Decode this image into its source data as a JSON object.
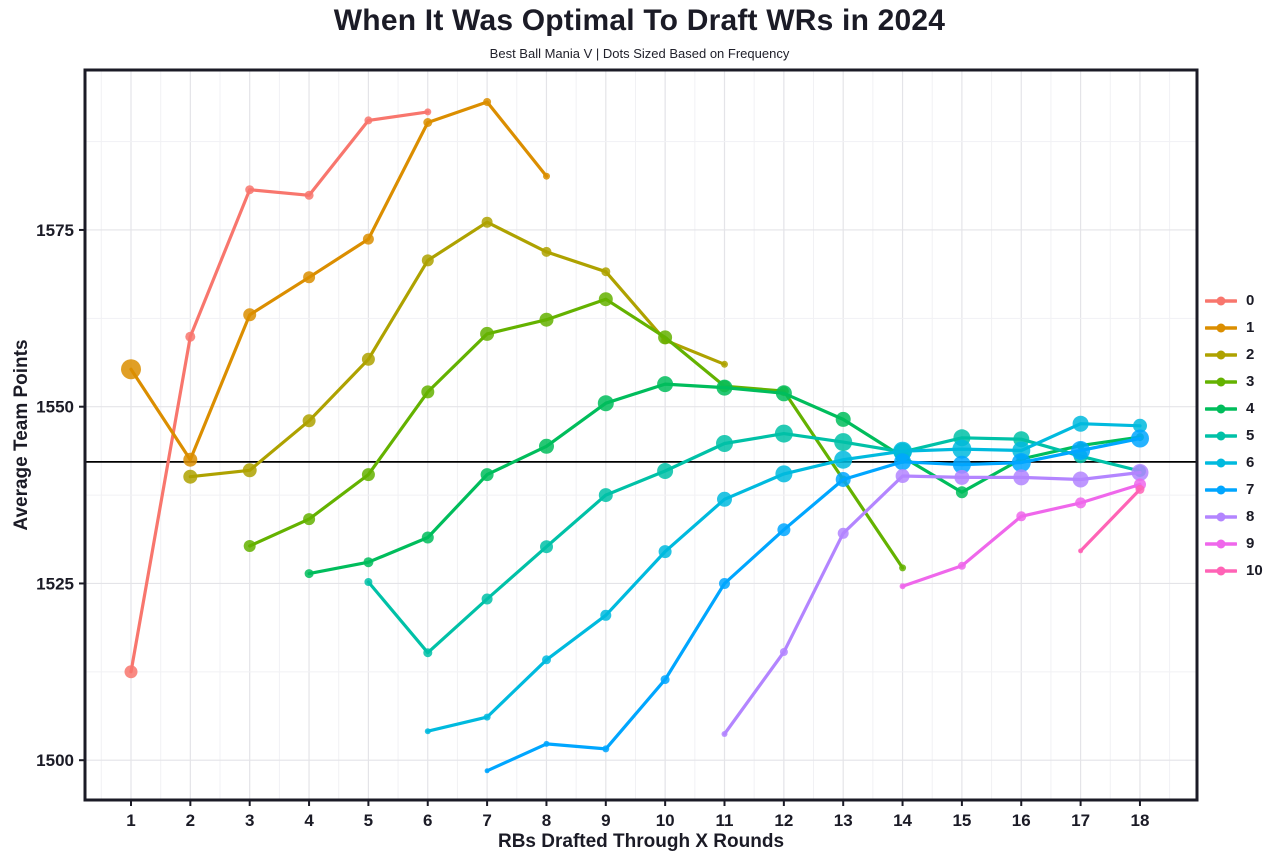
{
  "header": {
    "title": "When It Was Optimal To Draft WRs in 2024",
    "subtitle": "Best Ball Mania V | Dots Sized Based on Frequency"
  },
  "axes": {
    "x_label": "RBs Drafted Through X Rounds",
    "y_label": "Average Team Points",
    "x_ticks": [
      1,
      2,
      3,
      4,
      5,
      6,
      7,
      8,
      9,
      10,
      11,
      12,
      13,
      14,
      15,
      16,
      17,
      18
    ],
    "y_ticks": [
      1500,
      1525,
      1550,
      1575
    ]
  },
  "chart_data": {
    "type": "line",
    "title": "When It Was Optimal To Draft WRs in 2024",
    "subtitle": "Best Ball Mania V | Dots Sized Based on Frequency",
    "xlabel": "RBs Drafted Through X Rounds",
    "ylabel": "Average Team Points",
    "xlim": [
      0.22,
      18.96
    ],
    "ylim": [
      1494.4,
      1597.6
    ],
    "x_ticks": [
      1,
      2,
      3,
      4,
      5,
      6,
      7,
      8,
      9,
      10,
      11,
      12,
      13,
      14,
      15,
      16,
      17,
      18
    ],
    "y_ticks": [
      1500,
      1525,
      1550,
      1575
    ],
    "y_minor_ticks": [
      1512.5,
      1537.5,
      1562.5,
      1587.5
    ],
    "grid": true,
    "legend_position": "right",
    "legend_note": "dot size encodes frequency",
    "reference_line": {
      "value": 1542.2,
      "color": "#000000"
    },
    "series": [
      {
        "name": "0",
        "color": "#F8766D",
        "points": [
          [
            1,
            1512.5,
            6.5
          ],
          [
            2,
            1559.9,
            5
          ],
          [
            3,
            1580.7,
            4.5
          ],
          [
            4,
            1579.9,
            4.5
          ],
          [
            5,
            1590.5,
            4
          ],
          [
            6,
            1591.7,
            3.5
          ]
        ]
      },
      {
        "name": "1",
        "color": "#DB8E00",
        "points": [
          [
            1,
            1555.3,
            10
          ],
          [
            2,
            1542.5,
            7
          ],
          [
            3,
            1563.0,
            6.5
          ],
          [
            4,
            1568.3,
            6
          ],
          [
            5,
            1573.7,
            5.5
          ],
          [
            6,
            1590.2,
            4.5
          ],
          [
            7,
            1593.1,
            4
          ],
          [
            8,
            1582.6,
            3.5
          ]
        ]
      },
      {
        "name": "2",
        "color": "#AEA200",
        "points": [
          [
            2,
            1540.1,
            7
          ],
          [
            3,
            1541.0,
            7
          ],
          [
            4,
            1548.0,
            6.5
          ],
          [
            5,
            1556.7,
            6.5
          ],
          [
            6,
            1570.7,
            6
          ],
          [
            7,
            1576.1,
            5.5
          ],
          [
            8,
            1571.9,
            5
          ],
          [
            9,
            1569.1,
            4.5
          ],
          [
            10,
            1559.4,
            4
          ],
          [
            11,
            1556.0,
            3.5
          ]
        ]
      },
      {
        "name": "3",
        "color": "#64B200",
        "points": [
          [
            3,
            1530.3,
            6
          ],
          [
            4,
            1534.1,
            6
          ],
          [
            5,
            1540.4,
            6.5
          ],
          [
            6,
            1552.1,
            6.5
          ],
          [
            7,
            1560.3,
            7
          ],
          [
            8,
            1562.3,
            7
          ],
          [
            9,
            1565.2,
            7
          ],
          [
            10,
            1559.8,
            7
          ],
          [
            11,
            1552.9,
            6
          ],
          [
            12,
            1552.2,
            5
          ],
          [
            13,
            1539.7,
            4
          ],
          [
            14,
            1527.2,
            3.5
          ]
        ]
      },
      {
        "name": "4",
        "color": "#00BD5C",
        "points": [
          [
            4,
            1526.4,
            4.5
          ],
          [
            5,
            1528.0,
            5
          ],
          [
            6,
            1531.5,
            6
          ],
          [
            7,
            1540.4,
            6.5
          ],
          [
            8,
            1544.4,
            7.5
          ],
          [
            9,
            1550.5,
            8
          ],
          [
            10,
            1553.2,
            8
          ],
          [
            11,
            1552.7,
            8
          ],
          [
            12,
            1551.9,
            8
          ],
          [
            13,
            1548.2,
            7.5
          ],
          [
            14,
            1542.9,
            7
          ],
          [
            15,
            1537.9,
            6
          ],
          [
            16,
            1542.6,
            5
          ],
          [
            17,
            1544.5,
            4
          ],
          [
            18,
            1545.7,
            4
          ]
        ]
      },
      {
        "name": "5",
        "color": "#00C1A7",
        "points": [
          [
            5,
            1525.2,
            4
          ],
          [
            6,
            1515.2,
            4.5
          ],
          [
            7,
            1522.8,
            5.5
          ],
          [
            8,
            1530.2,
            6.5
          ],
          [
            9,
            1537.5,
            7
          ],
          [
            10,
            1540.9,
            8
          ],
          [
            11,
            1544.8,
            8.5
          ],
          [
            12,
            1546.2,
            9
          ],
          [
            13,
            1545.0,
            9
          ],
          [
            14,
            1543.6,
            9
          ],
          [
            15,
            1545.6,
            8.5
          ],
          [
            16,
            1545.4,
            8
          ],
          [
            17,
            1543.0,
            7
          ],
          [
            18,
            1540.9,
            6
          ]
        ]
      },
      {
        "name": "6",
        "color": "#00BADE",
        "points": [
          [
            6,
            1504.1,
            3
          ],
          [
            7,
            1506.1,
            3.5
          ],
          [
            8,
            1514.2,
            4.5
          ],
          [
            9,
            1520.5,
            5.5
          ],
          [
            10,
            1529.5,
            6.5
          ],
          [
            11,
            1536.9,
            7.5
          ],
          [
            12,
            1540.5,
            8.5
          ],
          [
            13,
            1542.5,
            9
          ],
          [
            14,
            1543.7,
            9.5
          ],
          [
            15,
            1544.0,
            9.5
          ],
          [
            16,
            1543.8,
            9
          ],
          [
            17,
            1547.6,
            8
          ],
          [
            18,
            1547.3,
            7
          ]
        ]
      },
      {
        "name": "7",
        "color": "#00A6FF",
        "points": [
          [
            7,
            1498.5,
            2.5
          ],
          [
            8,
            1502.3,
            3
          ],
          [
            9,
            1501.6,
            3.5
          ],
          [
            10,
            1511.4,
            4.5
          ],
          [
            11,
            1525.0,
            5.5
          ],
          [
            12,
            1532.6,
            6.5
          ],
          [
            13,
            1539.7,
            7.5
          ],
          [
            14,
            1542.2,
            8.5
          ],
          [
            15,
            1541.8,
            9
          ],
          [
            16,
            1542.1,
            9.5
          ],
          [
            17,
            1543.8,
            9.5
          ],
          [
            18,
            1545.5,
            9
          ]
        ]
      },
      {
        "name": "8",
        "color": "#B385FF",
        "points": [
          [
            11,
            1503.7,
            3
          ],
          [
            12,
            1515.3,
            4
          ],
          [
            13,
            1532.1,
            5.5
          ],
          [
            14,
            1540.2,
            7
          ],
          [
            15,
            1540.0,
            7.5
          ],
          [
            16,
            1540.0,
            8
          ],
          [
            17,
            1539.7,
            8
          ],
          [
            18,
            1540.7,
            8.5
          ]
        ]
      },
      {
        "name": "9",
        "color": "#EF67EB",
        "points": [
          [
            14,
            1524.6,
            3
          ],
          [
            15,
            1527.5,
            4
          ],
          [
            16,
            1534.5,
            5
          ],
          [
            17,
            1536.4,
            5.5
          ],
          [
            18,
            1539.0,
            6
          ]
        ]
      },
      {
        "name": "10",
        "color": "#FF63B6",
        "points": [
          [
            17,
            1529.6,
            2.5
          ],
          [
            18,
            1538.3,
            4.5
          ]
        ]
      }
    ]
  }
}
